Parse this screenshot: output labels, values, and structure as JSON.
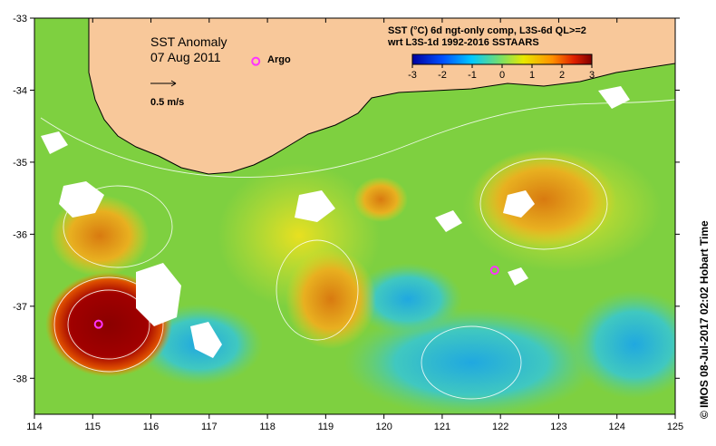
{
  "title": "SST Anomaly",
  "date": "07 Aug 2011",
  "scale_label": "0.5 m/s",
  "argo_label": "Argo",
  "header_line1": "SST (°C) 6d ngt-only comp, L3S-6d QL>=2",
  "header_line2": "wrt L3S-1d 1992-2016 SSTAARS",
  "colorbar_ticks": [
    "-3",
    "-2",
    "-1",
    "0",
    "1",
    "2",
    "3"
  ],
  "x_ticks": [
    "114",
    "115",
    "116",
    "117",
    "118",
    "119",
    "120",
    "121",
    "122",
    "123",
    "124",
    "125"
  ],
  "y_ticks": [
    "-33",
    "-34",
    "-35",
    "-36",
    "-37",
    "-38"
  ],
  "side_text": "© IMOS 08-Jul-2017 02:02 Hobart Time",
  "colors": {
    "land": "#f8c89a",
    "argo": "#ff33ff",
    "hot": "#8b0000",
    "anomaly_mid": "#9acd32"
  },
  "map_data": {
    "lon_range": [
      114,
      125
    ],
    "lat_range": [
      -38.5,
      -33
    ],
    "argo_floats": [
      {
        "lon": 115.1,
        "lat": -37.25
      },
      {
        "lon": 121.9,
        "lat": -36.5
      }
    ],
    "legend_float": {
      "lon": 117.8,
      "lat": -33.6
    }
  }
}
